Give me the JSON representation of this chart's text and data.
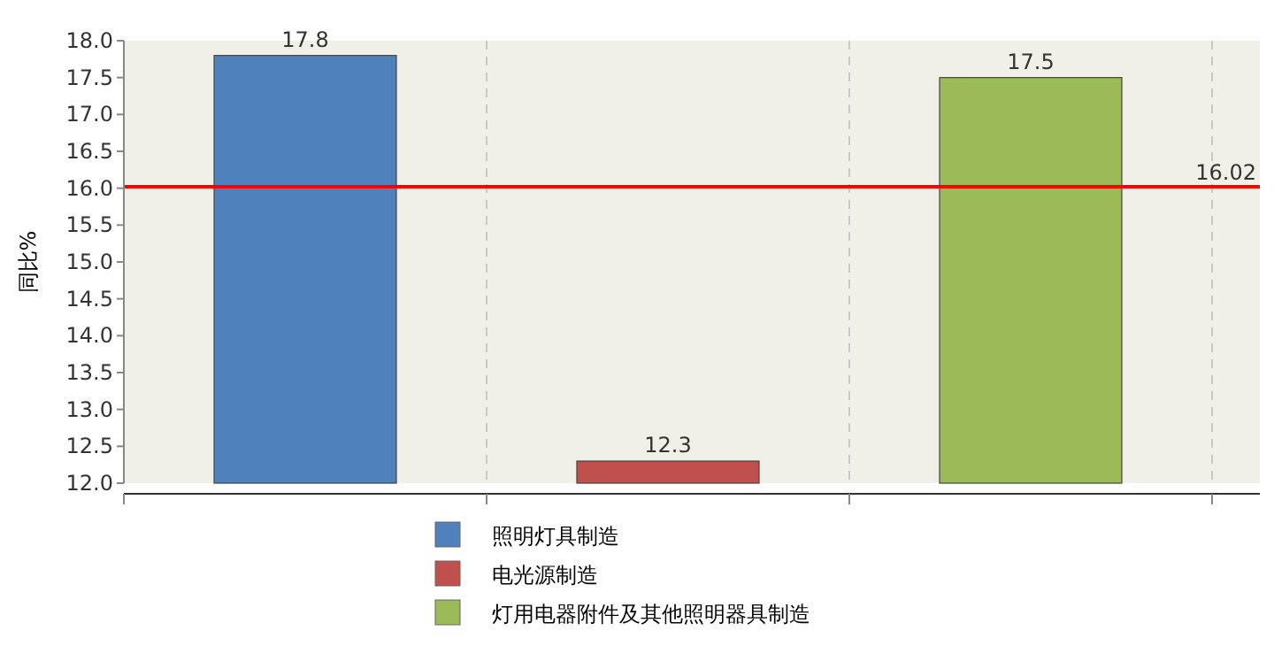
{
  "chart_data": {
    "type": "bar",
    "ylabel": "同比%",
    "categories": [
      null,
      null,
      null
    ],
    "series": [
      {
        "name": "照明灯具制造",
        "color": "#4f81bd",
        "values": [
          17.8,
          null,
          null
        ]
      },
      {
        "name": "电光源制造",
        "color": "#c0504d",
        "values": [
          null,
          12.3,
          null
        ]
      },
      {
        "name": "灯用电器附件及其他照明器具制造",
        "color": "#9bbb59",
        "values": [
          null,
          null,
          17.5
        ]
      }
    ],
    "ylim": [
      12,
      18
    ],
    "yticks": [
      {
        "value": 12,
        "label": "12.0"
      },
      {
        "value": 12.5,
        "label": "12.5"
      },
      {
        "value": 13,
        "label": "13.0"
      },
      {
        "value": 13.5,
        "label": "13.5"
      },
      {
        "value": 14,
        "label": "14.0"
      },
      {
        "value": 14.5,
        "label": "14.5"
      },
      {
        "value": 15,
        "label": "15.0"
      },
      {
        "value": 15.5,
        "label": "15.5"
      },
      {
        "value": 16,
        "label": "16.0"
      },
      {
        "value": 16.5,
        "label": "16.5"
      },
      {
        "value": 17,
        "label": "17.0"
      },
      {
        "value": 17.5,
        "label": "17.5"
      },
      {
        "value": 18,
        "label": "18.0"
      }
    ],
    "ref_lines": [
      {
        "axis": "y",
        "value": 16.02,
        "label": "16.02",
        "color": "#ff0000"
      }
    ],
    "data_labels": true,
    "grid": "x",
    "legend": "bottom"
  }
}
